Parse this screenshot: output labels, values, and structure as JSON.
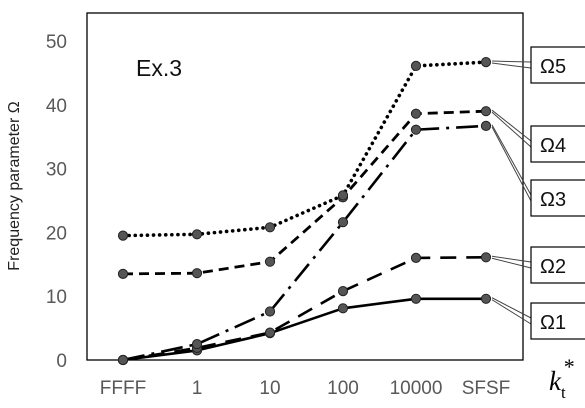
{
  "chart_data": {
    "type": "line",
    "categories": [
      "FFFF",
      "1",
      "10",
      "100",
      "10000",
      "SFSF"
    ],
    "ylim": [
      0,
      50
    ],
    "yticks": [
      "0",
      "10",
      "20",
      "30",
      "40",
      "50"
    ],
    "ylabel": "Frequency parameter Ω",
    "xlabel": {
      "main": "k",
      "sub": "t",
      "sup": "*"
    },
    "annotation": "Ex.3",
    "grid": false,
    "series": [
      {
        "name": "Ω1",
        "style": "solid",
        "values": [
          0,
          1.5,
          4.2,
          8.1,
          9.6,
          9.6
        ]
      },
      {
        "name": "Ω2",
        "style": "longdash",
        "values": [
          0,
          1.9,
          4.3,
          10.8,
          16.0,
          16.1
        ]
      },
      {
        "name": "Ω3",
        "style": "dashdot",
        "values": [
          0,
          2.5,
          7.6,
          21.6,
          36.1,
          36.7
        ]
      },
      {
        "name": "Ω4",
        "style": "shortdash",
        "values": [
          13.5,
          13.6,
          15.4,
          25.5,
          38.6,
          39.0
        ]
      },
      {
        "name": "Ω5",
        "style": "dotted",
        "values": [
          19.5,
          19.7,
          20.8,
          25.8,
          46.1,
          46.7
        ]
      }
    ],
    "legend_order": [
      "Ω5",
      "Ω4",
      "Ω3",
      "Ω2",
      "Ω1"
    ],
    "colors": {
      "line": "#000000",
      "marker_fill": "#555555",
      "marker_stroke": "#222222",
      "tick_text": "#595959"
    }
  }
}
